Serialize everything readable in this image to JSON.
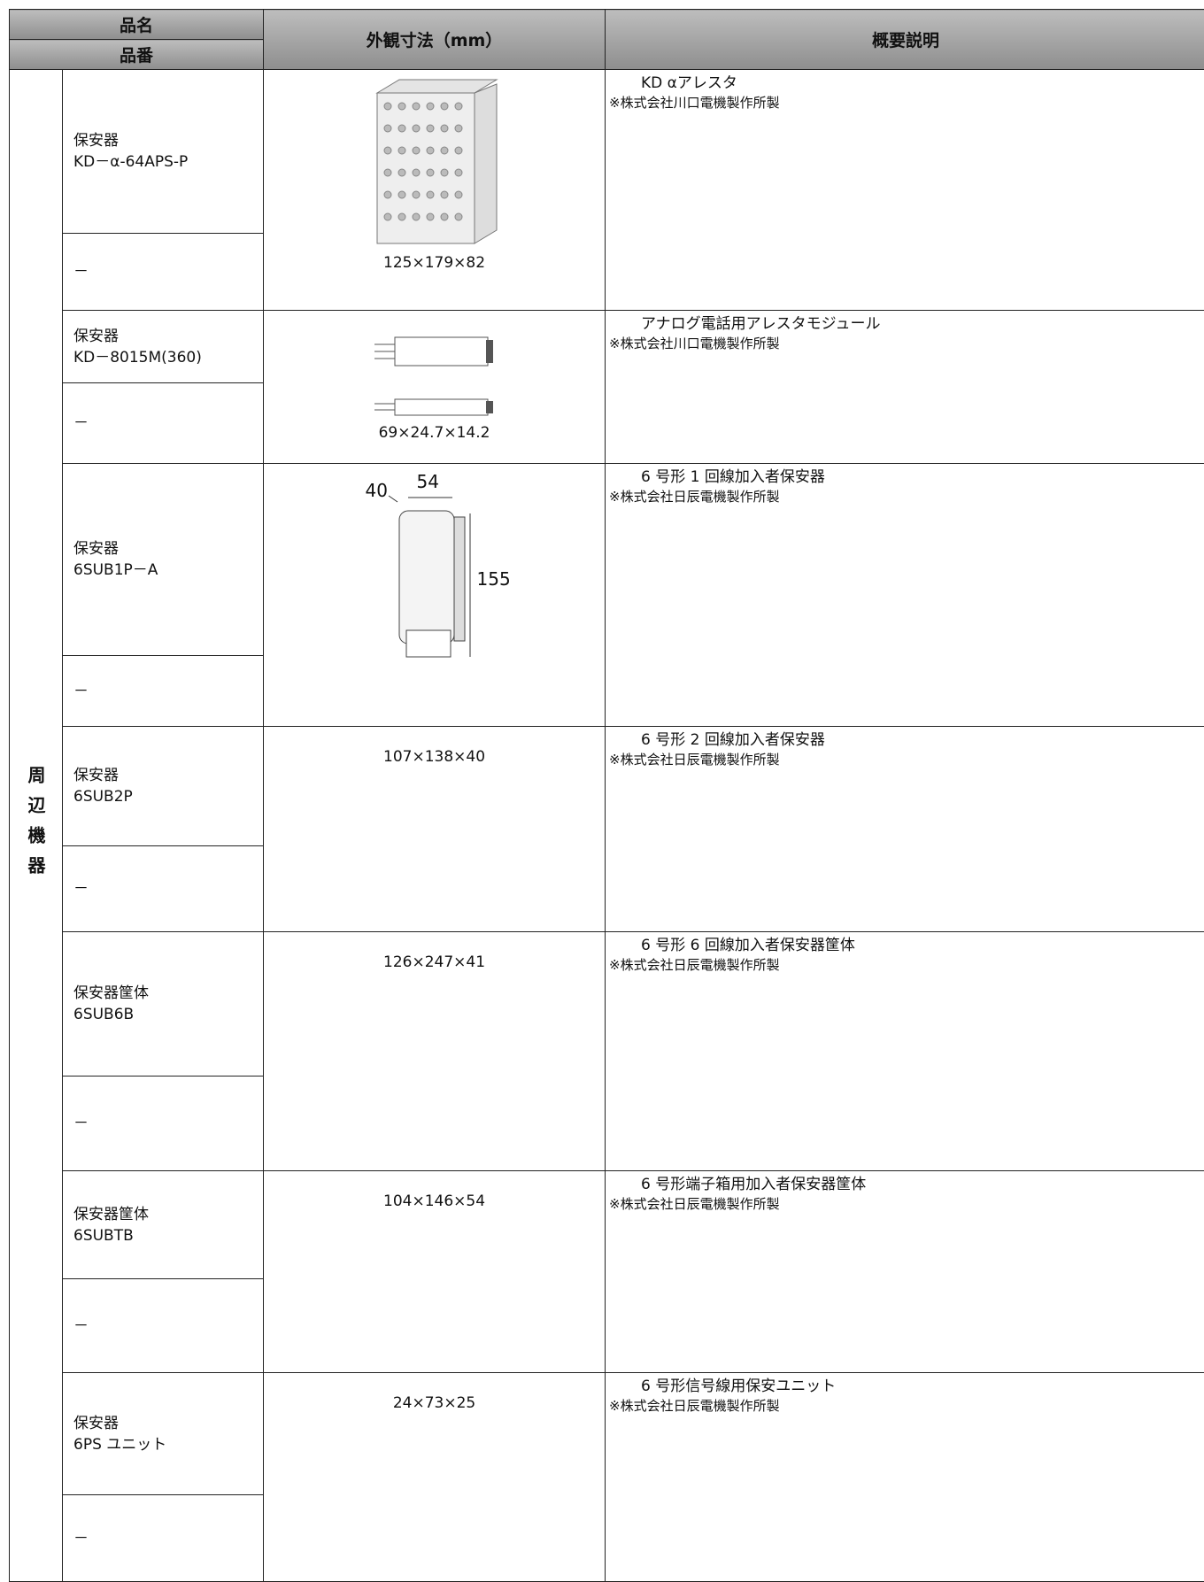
{
  "header": {
    "name_label": "品名",
    "number_label": "品番",
    "dims_label": "外観寸法（mm）",
    "desc_label": "概要説明"
  },
  "category": "周辺機器",
  "items": [
    {
      "name": "保安器",
      "number": "KD－α-64APS-P",
      "alt": "－",
      "dims": "125×179×82",
      "desc": "KD αアレスタ",
      "maker": "※株式会社川口電機製作所製"
    },
    {
      "name": "保安器",
      "number": "KD－8015M(360)",
      "alt": "－",
      "dims": "69×24.7×14.2",
      "desc": "アナログ電話用アレスタモジュール",
      "maker": "※株式会社川口電機製作所製"
    },
    {
      "name": "保安器",
      "number": "6SUB1P－A",
      "alt": "－",
      "drawing_labels": [
        "40",
        "54",
        "155"
      ],
      "desc": "6 号形 1 回線加入者保安器",
      "maker": "※株式会社日辰電機製作所製"
    },
    {
      "name": "保安器",
      "number": "6SUB2P",
      "alt": "－",
      "dims": "107×138×40",
      "desc": "6 号形 2 回線加入者保安器",
      "maker": "※株式会社日辰電機製作所製"
    },
    {
      "name": "保安器筐体",
      "number": "6SUB6B",
      "alt": "－",
      "dims": "126×247×41",
      "desc": "6 号形 6 回線加入者保安器筐体",
      "maker": "※株式会社日辰電機製作所製"
    },
    {
      "name": "保安器筐体",
      "number": "6SUBTB",
      "alt": "－",
      "dims": "104×146×54",
      "desc": "6 号形端子箱用加入者保安器筐体",
      "maker": "※株式会社日辰電機製作所製"
    },
    {
      "name": "保安器",
      "number": "6PS ユニット",
      "alt": "－",
      "dims": "24×73×25",
      "desc": "6 号形信号線用保安ユニット",
      "maker": "※株式会社日辰電機製作所製"
    }
  ]
}
